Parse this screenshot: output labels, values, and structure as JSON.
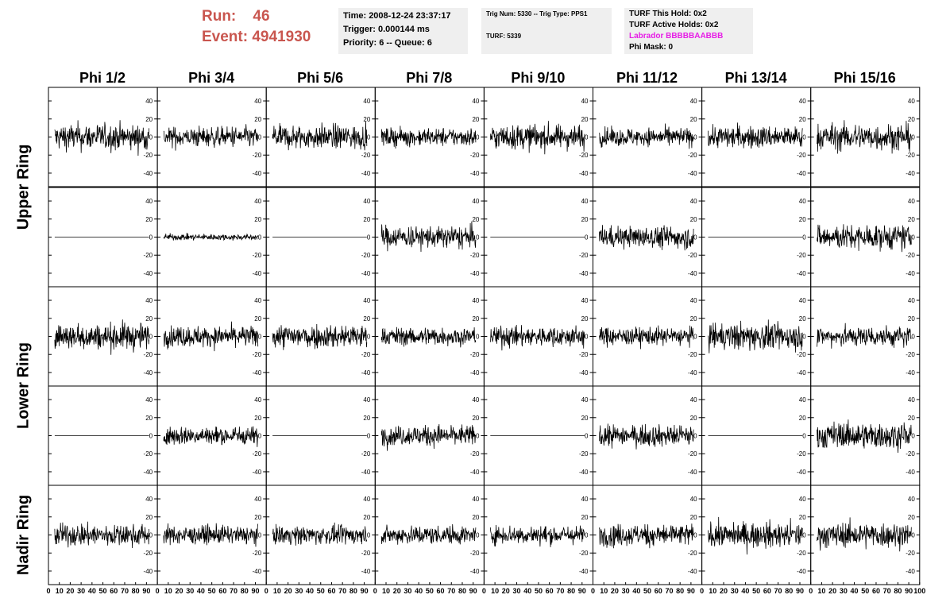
{
  "header": {
    "run_label": "Run:",
    "run_value": "46",
    "event_label": "Event:",
    "event_value": "4941930"
  },
  "info_time": {
    "time": "Time: 2008-12-24 23:37:17",
    "trigger": "Trigger: 0.000144 ms",
    "priority": "Priority: 6 -- Queue: 6"
  },
  "info_trig": {
    "trig": "Trig Num: 5330 -- Trig Type: PPS1",
    "turf": "TURF: 5339"
  },
  "info_turf": {
    "this_hold": "TURF This Hold: 0x2",
    "active_holds": "TURF Active Holds: 0x2",
    "labrador": "Labrador BBBBBAABBB",
    "phi_mask": "Phi Mask: 0",
    "labrador_color": "#e61ce6"
  },
  "columns": [
    "Phi 1/2",
    "Phi 3/4",
    "Phi 5/6",
    "Phi 7/8",
    "Phi 9/10",
    "Phi 11/12",
    "Phi 13/14",
    "Phi 15/16"
  ],
  "rings": [
    "Upper Ring",
    "Lower Ring",
    "Nadir Ring"
  ],
  "chart_data": {
    "type": "line",
    "xlim": [
      0,
      100
    ],
    "ylim": [
      -55,
      55
    ],
    "y_ticks": [
      -40,
      -20,
      0,
      20,
      40
    ],
    "x_tick_labels": [
      "0",
      "10",
      "20",
      "30",
      "40",
      "50",
      "60",
      "70",
      "80",
      "90",
      "100"
    ],
    "grid": false,
    "line_color": "#000000",
    "rows": [
      {
        "amplitudes": [
          13,
          10,
          12,
          9,
          12,
          9,
          11,
          13
        ]
      },
      {
        "amplitudes": [
          0,
          3,
          0,
          11,
          0,
          11,
          0,
          12
        ]
      },
      {
        "amplitudes": [
          13,
          10,
          12,
          9,
          10,
          9,
          13,
          10
        ]
      },
      {
        "amplitudes": [
          0,
          9,
          0,
          10,
          0,
          11,
          0,
          13
        ]
      },
      {
        "amplitudes": [
          11,
          9,
          9,
          9,
          9,
          11,
          12,
          12
        ]
      }
    ]
  }
}
